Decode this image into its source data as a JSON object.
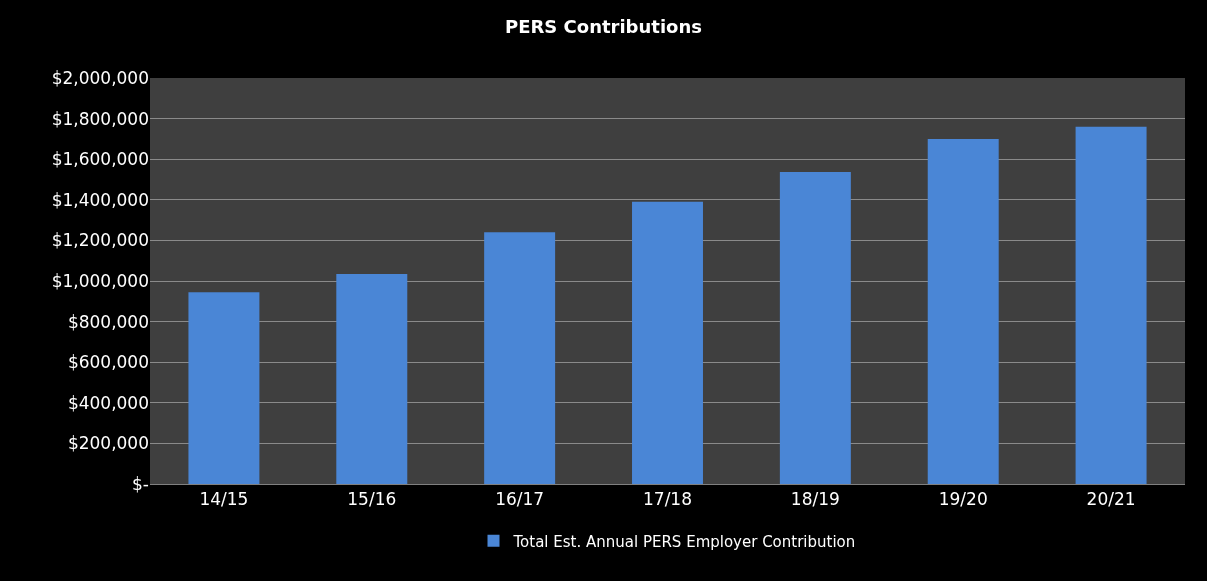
{
  "chart_data": {
    "type": "bar",
    "title": "PERS Contributions",
    "categories": [
      "14/15",
      "15/16",
      "16/17",
      "17/18",
      "18/19",
      "19/20",
      "20/21"
    ],
    "series": [
      {
        "name": "Total Est. Annual PERS Employer Contribution",
        "color": "#4a86d6",
        "values": [
          945000,
          1035000,
          1240000,
          1390000,
          1537000,
          1700000,
          1760000
        ]
      }
    ],
    "ylim": [
      0,
      2000000
    ],
    "yticks": [
      {
        "value": 0,
        "label": "$-"
      },
      {
        "value": 200000,
        "label": "$200,000"
      },
      {
        "value": 400000,
        "label": "$400,000"
      },
      {
        "value": 600000,
        "label": "$600,000"
      },
      {
        "value": 800000,
        "label": "$800,000"
      },
      {
        "value": 1000000,
        "label": "$1,000,000"
      },
      {
        "value": 1200000,
        "label": "$1,200,000"
      },
      {
        "value": 1400000,
        "label": "$1,400,000"
      },
      {
        "value": 1600000,
        "label": "$1,600,000"
      },
      {
        "value": 1800000,
        "label": "$1,800,000"
      },
      {
        "value": 2000000,
        "label": "$2,000,000"
      }
    ],
    "grid": "y",
    "legend": "bottom"
  }
}
